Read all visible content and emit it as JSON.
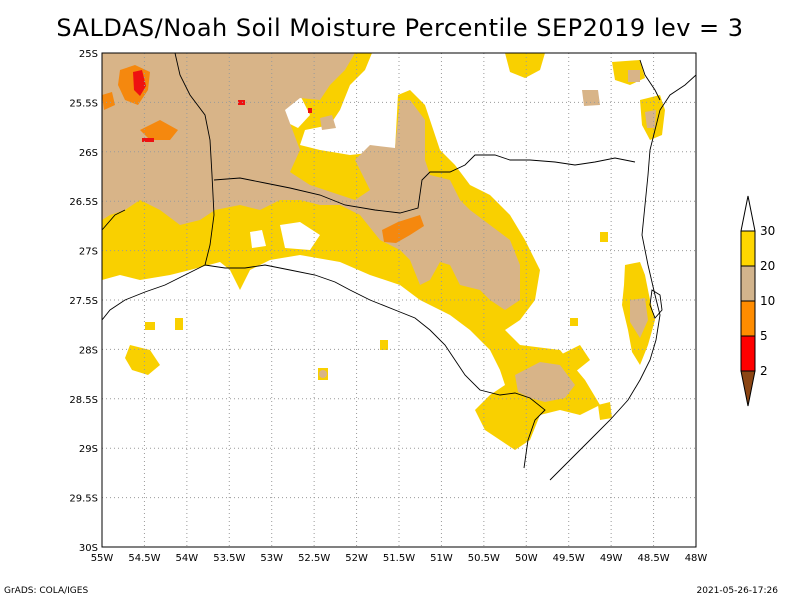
{
  "title": "SALDAS/Noah Soil Moisture Percentile SEP2019 lev = 3",
  "footer": {
    "left": "GrADS: COLA/IGES",
    "right": "2021-05-26-17:26"
  },
  "axes": {
    "x_ticks": [
      "55W",
      "54.5W",
      "54W",
      "53.5W",
      "53W",
      "52.5W",
      "52W",
      "51.5W",
      "51W",
      "50.5W",
      "50W",
      "49.5W",
      "49W",
      "48.5W",
      "48W"
    ],
    "y_ticks": [
      "25S",
      "25.5S",
      "26S",
      "26.5S",
      "27S",
      "27.5S",
      "28S",
      "28.5S",
      "29S",
      "29.5S",
      "30S"
    ]
  },
  "legend": {
    "labels": [
      "30",
      "20",
      "10",
      "5",
      "2"
    ],
    "colors": {
      "class_20_30": "#ffd700",
      "class_10_20": "#d2b48c",
      "class_5_10": "#ff8c00",
      "class_2_5": "#ff0000",
      "class_below_2": "#8b4513"
    }
  },
  "colors": {
    "yellow": "#f9d000",
    "tan": "#d8b488",
    "orange": "#f5880e",
    "red": "#ee1111",
    "grid": "#9a9a9a",
    "border": "#000000"
  }
}
